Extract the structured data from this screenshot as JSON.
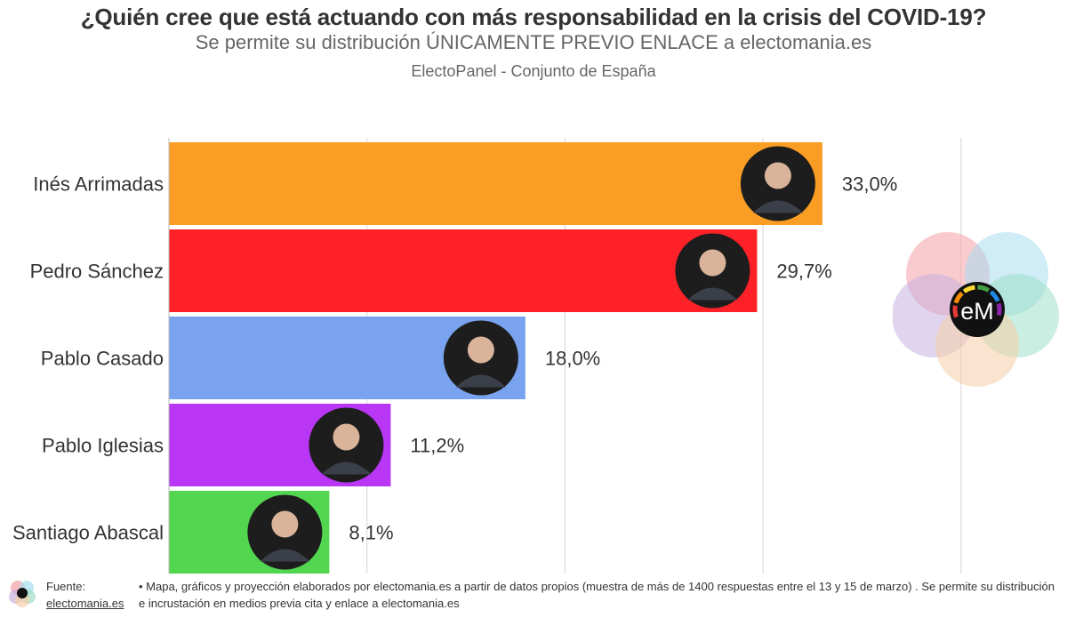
{
  "title": "¿Quién cree que está actuando con más responsabilidad en la crisis del COVID-19?",
  "subtitle": "Se permite su distribución ÚNICAMENTE PREVIO ENLACE a electomania.es",
  "subtitle2": "ElectoPanel - Conjunto de España",
  "chart_data": {
    "type": "bar",
    "orientation": "horizontal",
    "categories": [
      "Inés Arrimadas",
      "Pedro Sánchez",
      "Pablo Casado",
      "Pablo Iglesias",
      "Santiago Abascal"
    ],
    "values": [
      33.0,
      29.7,
      18.0,
      11.2,
      8.1
    ],
    "value_labels": [
      "33,0%",
      "29,7%",
      "18,0%",
      "11,2%",
      "8,1%"
    ],
    "colors": [
      "#F99D25",
      "#FF2128",
      "#79A3EE",
      "#B936F5",
      "#52D64F"
    ],
    "xlim": [
      0,
      40
    ],
    "grid": true,
    "unit": "%"
  },
  "logo": {
    "text": "eM",
    "colors": [
      "#F4A0A5",
      "#A8DDF0",
      "#C9B0E0",
      "#9FE0C8",
      "#F6CDA8"
    ]
  },
  "footer": {
    "source_label": "Fuente:",
    "source_link": "electomania.es",
    "note": "• Mapa, gráficos y proyección elaborados por electomania.es a partir de datos propios (muestra de más de 1400 respuestas entre el 13 y 15 de marzo) . Se permite su distribución e incrustación en medios previa cita y enlace a electomania.es"
  }
}
